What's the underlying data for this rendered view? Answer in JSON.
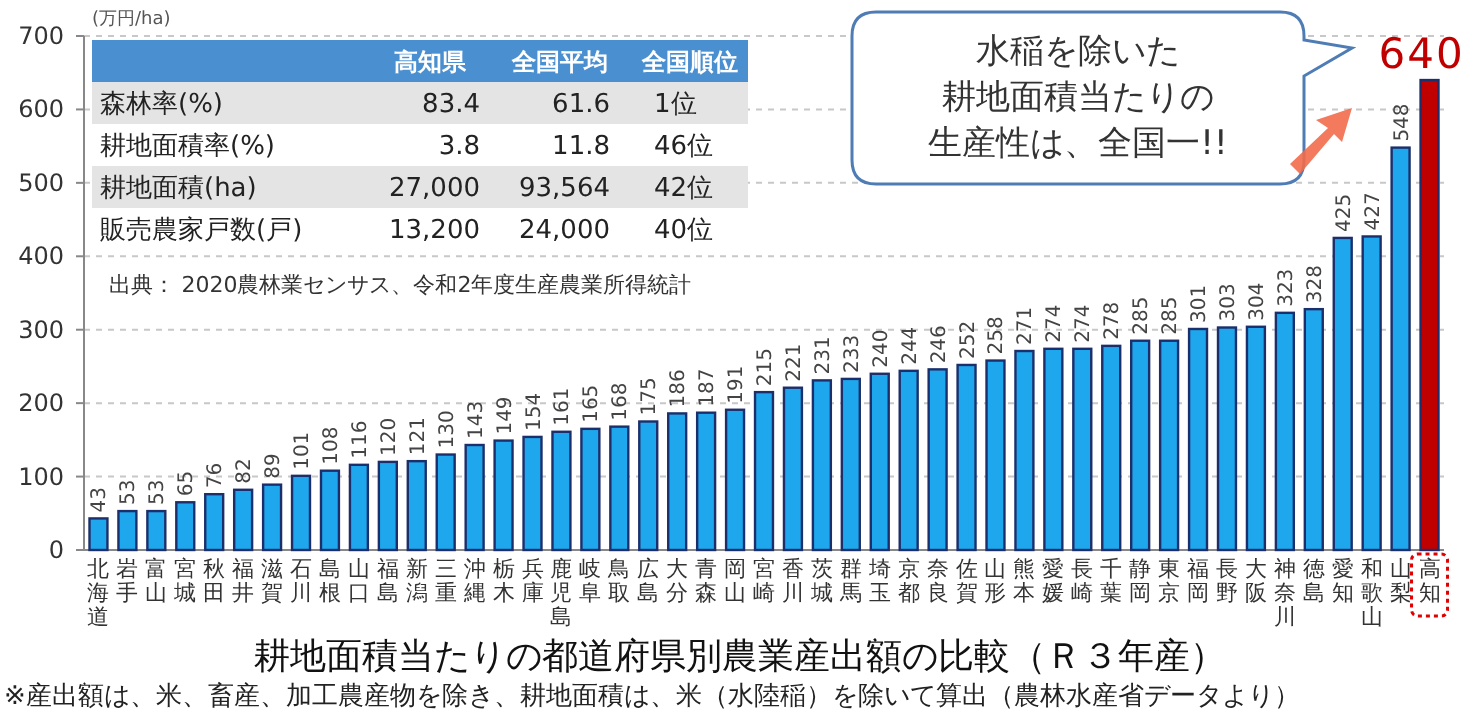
{
  "chart_data": [
    {
      "type": "bar",
      "title": "耕地面積当たりの都道府県別農業産出額の比較（Ｒ３年産）",
      "ylabel": "(万円/ha)",
      "categories": [
        "北海道",
        "岩手",
        "富山",
        "宮城",
        "秋田",
        "福井",
        "滋賀",
        "石川",
        "島根",
        "山口",
        "福島",
        "新潟",
        "三重",
        "沖縄",
        "栃木",
        "兵庫",
        "鹿児島",
        "岐阜",
        "鳥取",
        "広島",
        "大分",
        "青森",
        "岡山",
        "宮崎",
        "香川",
        "茨城",
        "群馬",
        "埼玉",
        "京都",
        "奈良",
        "佐賀",
        "山形",
        "熊本",
        "愛媛",
        "長崎",
        "千葉",
        "静岡",
        "東京",
        "福岡",
        "長野",
        "大阪",
        "神奈川",
        "徳島",
        "愛知",
        "和歌山",
        "山梨",
        "高知"
      ],
      "values": [
        43,
        53,
        53,
        65,
        76,
        82,
        89,
        101,
        108,
        116,
        120,
        121,
        130,
        143,
        149,
        154,
        161,
        165,
        168,
        175,
        186,
        187,
        191,
        215,
        221,
        231,
        233,
        240,
        244,
        246,
        252,
        258,
        271,
        274,
        274,
        278,
        285,
        285,
        301,
        303,
        304,
        323,
        328,
        425,
        427,
        548,
        640
      ],
      "colors": [
        "#1ea7ec",
        "#1ea7ec",
        "#1ea7ec",
        "#1ea7ec",
        "#1ea7ec",
        "#1ea7ec",
        "#1ea7ec",
        "#1ea7ec",
        "#1ea7ec",
        "#1ea7ec",
        "#1ea7ec",
        "#1ea7ec",
        "#1ea7ec",
        "#1ea7ec",
        "#1ea7ec",
        "#1ea7ec",
        "#1ea7ec",
        "#1ea7ec",
        "#1ea7ec",
        "#1ea7ec",
        "#1ea7ec",
        "#1ea7ec",
        "#1ea7ec",
        "#1ea7ec",
        "#1ea7ec",
        "#1ea7ec",
        "#1ea7ec",
        "#1ea7ec",
        "#1ea7ec",
        "#1ea7ec",
        "#1ea7ec",
        "#1ea7ec",
        "#1ea7ec",
        "#1ea7ec",
        "#1ea7ec",
        "#1ea7ec",
        "#1ea7ec",
        "#1ea7ec",
        "#1ea7ec",
        "#1ea7ec",
        "#1ea7ec",
        "#1ea7ec",
        "#1ea7ec",
        "#1ea7ec",
        "#1ea7ec",
        "#1ea7ec",
        "#c00000"
      ],
      "ylim": [
        0,
        700
      ],
      "yticks": [
        0,
        100,
        200,
        300,
        400,
        500,
        600,
        700
      ],
      "grid": "y",
      "data_labels": true,
      "annotations": [
        "水稲を除いた",
        "耕地面積当たりの",
        "生産性は、全国一!!",
        "※産出額は、米、畜産、加工農産物を除き、耕地面積は、米（水陸稲）を除いて算出（農林水産省データより）"
      ]
    },
    {
      "type": "other",
      "categories": [
        "高知県",
        "全国平均",
        "全国順位"
      ],
      "y_categories": [
        "森林率(%)",
        "耕地面積率(%)",
        "耕地面積(ha)",
        "販売農家戸数(戸)"
      ],
      "cell_labels": [
        [
          "83.4",
          "61.6",
          "1位"
        ],
        [
          "3.8",
          "11.8",
          "46位"
        ],
        [
          "27,000",
          "93,564",
          "42位"
        ],
        [
          "13,200",
          "24,000",
          "40位"
        ]
      ],
      "annotations": [
        "出典： 2020農林業センサス、令和2年度生産農業所得統計"
      ]
    }
  ]
}
